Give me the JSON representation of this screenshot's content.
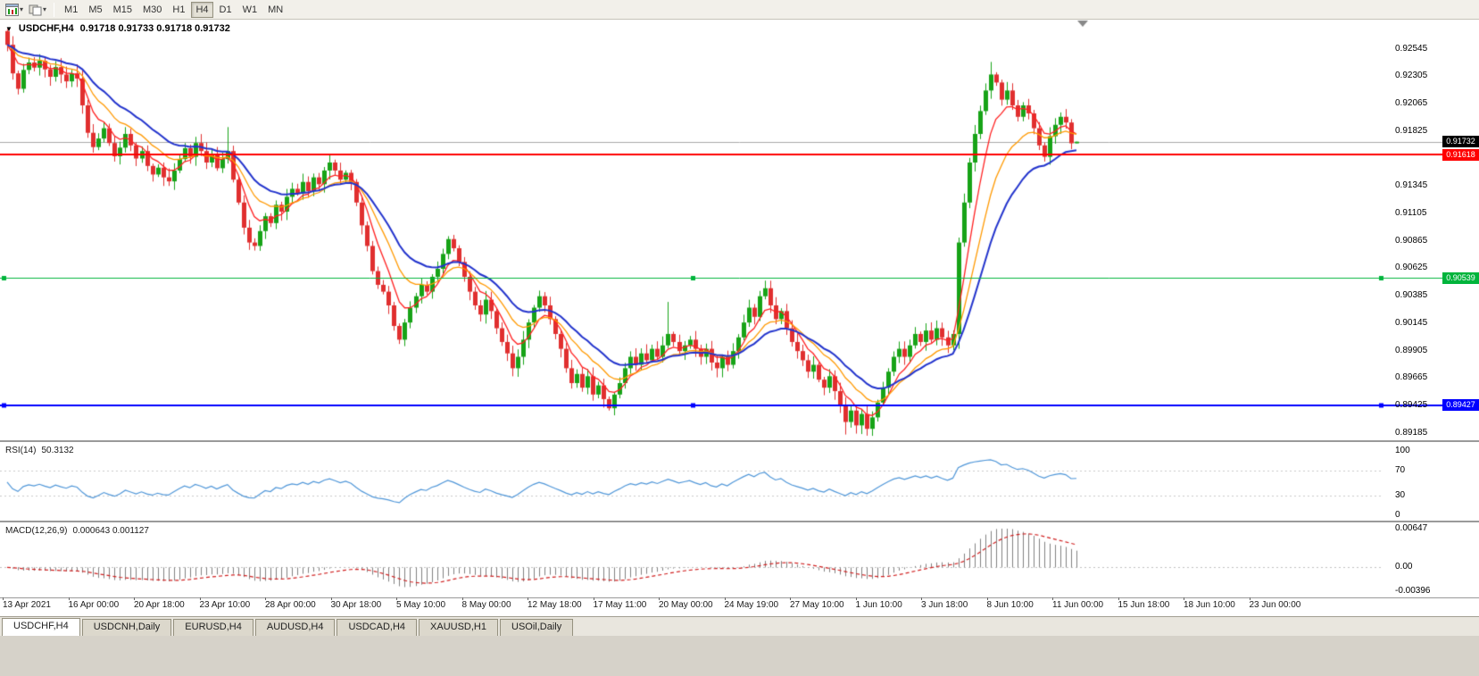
{
  "toolbar": {
    "icons": {
      "caret": "▾",
      "one_click_arrow": "▼"
    },
    "timeframes": [
      {
        "label": "M1",
        "active": false
      },
      {
        "label": "M5",
        "active": false
      },
      {
        "label": "M15",
        "active": false
      },
      {
        "label": "M30",
        "active": false
      },
      {
        "label": "H1",
        "active": false
      },
      {
        "label": "H4",
        "active": true
      },
      {
        "label": "D1",
        "active": false
      },
      {
        "label": "W1",
        "active": false
      },
      {
        "label": "MN",
        "active": false
      }
    ]
  },
  "main_chart": {
    "title_symbol": "USDCHF,H4",
    "title_ohlc": "0.91718 0.91733 0.91718 0.91732",
    "current_price_badge": {
      "text": "0.91732",
      "bg": "#000000",
      "value": 0.91732
    },
    "hlines": [
      {
        "value": 0.91618,
        "label": "0.91618",
        "color": "#ff0000",
        "width": 2,
        "handles": false
      },
      {
        "value": 0.90539,
        "label": "0.90539",
        "color": "#00b43c",
        "width": 1,
        "handles": true
      },
      {
        "value": 0.89427,
        "label": "0.89427",
        "color": "#0000ff",
        "width": 2,
        "handles": true
      }
    ],
    "price_ticks": [
      "0.92545",
      "0.92305",
      "0.92065",
      "0.91825",
      "0.91345",
      "0.91105",
      "0.90865",
      "0.90625",
      "0.90385",
      "0.90145",
      "0.89905",
      "0.89665",
      "0.89425",
      "0.89185"
    ]
  },
  "rsi_panel": {
    "label": "RSI(14)",
    "value": "50.3132",
    "ticks": [
      100,
      70,
      30,
      0
    ],
    "levels": [
      70,
      30
    ],
    "line_color": "#4f96d8",
    "range": [
      0,
      100
    ]
  },
  "macd_panel": {
    "label": "MACD(12,26,9)",
    "values": "0.000643 0.001127",
    "ticks": [
      "0.00647",
      "0.00",
      "-0.00396"
    ],
    "range": [
      -0.00396,
      0.00647
    ],
    "histogram_color": "#808080",
    "signal_color": "#d02020"
  },
  "date_axis": {
    "labels": [
      "13 Apr 2021",
      "16 Apr 00:00",
      "20 Apr 18:00",
      "23 Apr 10:00",
      "28 Apr 00:00",
      "30 Apr 18:00",
      "5 May 10:00",
      "8 May 00:00",
      "12 May 18:00",
      "17 May 11:00",
      "20 May 00:00",
      "24 May 19:00",
      "27 May 10:00",
      "1 Jun 10:00",
      "3 Jun 18:00",
      "8 Jun 10:00",
      "11 Jun 00:00",
      "15 Jun 18:00",
      "18 Jun 10:00",
      "23 Jun 00:00"
    ]
  },
  "tabs": [
    {
      "label": "USDCHF,H4",
      "active": true
    },
    {
      "label": "USDCNH,Daily",
      "active": false
    },
    {
      "label": "EURUSD,H4",
      "active": false
    },
    {
      "label": "AUDUSD,H4",
      "active": false
    },
    {
      "label": "USDCAD,H4",
      "active": false
    },
    {
      "label": "XAUUSD,H1",
      "active": false
    },
    {
      "label": "USOil,Daily",
      "active": false
    }
  ],
  "chart_data": {
    "type": "candlestick",
    "symbol": "USDCHF",
    "timeframe": "H4",
    "title": "USDCHF,H4 0.91718 0.91733 0.91718 0.91732",
    "price_range": [
      0.8912,
      0.928
    ],
    "first_open": 0.927,
    "up_color": "#17a317",
    "down_color": "#e02f2f",
    "closes": [
      0.9258,
      0.9233,
      0.92195,
      0.9236,
      0.92425,
      0.9238,
      0.9244,
      0.92365,
      0.923,
      0.92385,
      0.9232,
      0.9226,
      0.9233,
      0.92285,
      0.9205,
      0.9181,
      0.91685,
      0.9176,
      0.9185,
      0.9172,
      0.91605,
      0.9168,
      0.918,
      0.917,
      0.91585,
      0.9165,
      0.9152,
      0.91445,
      0.91505,
      0.9142,
      0.91385,
      0.9148,
      0.9158,
      0.91675,
      0.916,
      0.9172,
      0.9165,
      0.9155,
      0.9162,
      0.915,
      0.9158,
      0.9165,
      0.914,
      0.912,
      0.9098,
      0.9085,
      0.9082,
      0.9095,
      0.9108,
      0.9102,
      0.9118,
      0.9112,
      0.9125,
      0.9132,
      0.9128,
      0.9138,
      0.913,
      0.9142,
      0.9136,
      0.9148,
      0.9155,
      0.9148,
      0.914,
      0.9146,
      0.9138,
      0.912,
      0.91,
      0.9082,
      0.906,
      0.9048,
      0.9042,
      0.903,
      0.9012,
      0.9,
      0.9015,
      0.9028,
      0.9038,
      0.9048,
      0.9042,
      0.9055,
      0.9062,
      0.9075,
      0.9088,
      0.908,
      0.9068,
      0.9055,
      0.9042,
      0.903,
      0.9022,
      0.9035,
      0.9025,
      0.901,
      0.8998,
      0.8988,
      0.8975,
      0.8985,
      0.9,
      0.9015,
      0.9028,
      0.9038,
      0.903,
      0.9018,
      0.9005,
      0.8992,
      0.8975,
      0.8962,
      0.897,
      0.8958,
      0.8968,
      0.8952,
      0.896,
      0.8948,
      0.894,
      0.8952,
      0.8962,
      0.8975,
      0.8985,
      0.8978,
      0.8988,
      0.8982,
      0.8992,
      0.8985,
      0.8995,
      0.9005,
      0.8998,
      0.899,
      0.8995,
      0.9,
      0.8992,
      0.8985,
      0.8992,
      0.898,
      0.8975,
      0.8985,
      0.8978,
      0.899,
      0.9002,
      0.9015,
      0.9028,
      0.902,
      0.9038,
      0.9045,
      0.903,
      0.9018,
      0.9025,
      0.901,
      0.8998,
      0.899,
      0.8982,
      0.8972,
      0.8978,
      0.8965,
      0.8958,
      0.8968,
      0.8955,
      0.8942,
      0.8928,
      0.8938,
      0.8925,
      0.8935,
      0.8922,
      0.8932,
      0.8945,
      0.8958,
      0.8972,
      0.8985,
      0.8992,
      0.8985,
      0.8995,
      0.9005,
      0.8998,
      0.9008,
      0.9,
      0.901,
      0.9002,
      0.8995,
      0.9005,
      0.9085,
      0.912,
      0.9155,
      0.918,
      0.92,
      0.9218,
      0.9232,
      0.9225,
      0.921,
      0.9218,
      0.9205,
      0.9195,
      0.9205,
      0.9198,
      0.9185,
      0.917,
      0.916,
      0.9178,
      0.9188,
      0.9195,
      0.919,
      0.91718,
      0.91732
    ],
    "spikes": [
      {
        "i": 41,
        "h": 0.9186
      },
      {
        "i": 60,
        "h": 0.91625
      },
      {
        "i": 112,
        "l": 0.8938
      },
      {
        "i": 123,
        "h": 0.9033
      },
      {
        "i": 156,
        "l": 0.8917
      },
      {
        "i": 160,
        "l": 0.8916
      },
      {
        "i": 177,
        "l": 0.8992
      },
      {
        "i": 183,
        "h": 0.9243
      },
      {
        "i": 199,
        "h": 0.91733,
        "l": 0.91717
      }
    ],
    "moving_averages": [
      {
        "period": 6,
        "color": "#ff2020",
        "width": 1.3
      },
      {
        "period": 12,
        "color": "#ff9900",
        "width": 1.3
      },
      {
        "period": 20,
        "color": "#2233cc",
        "width": 2
      }
    ]
  }
}
